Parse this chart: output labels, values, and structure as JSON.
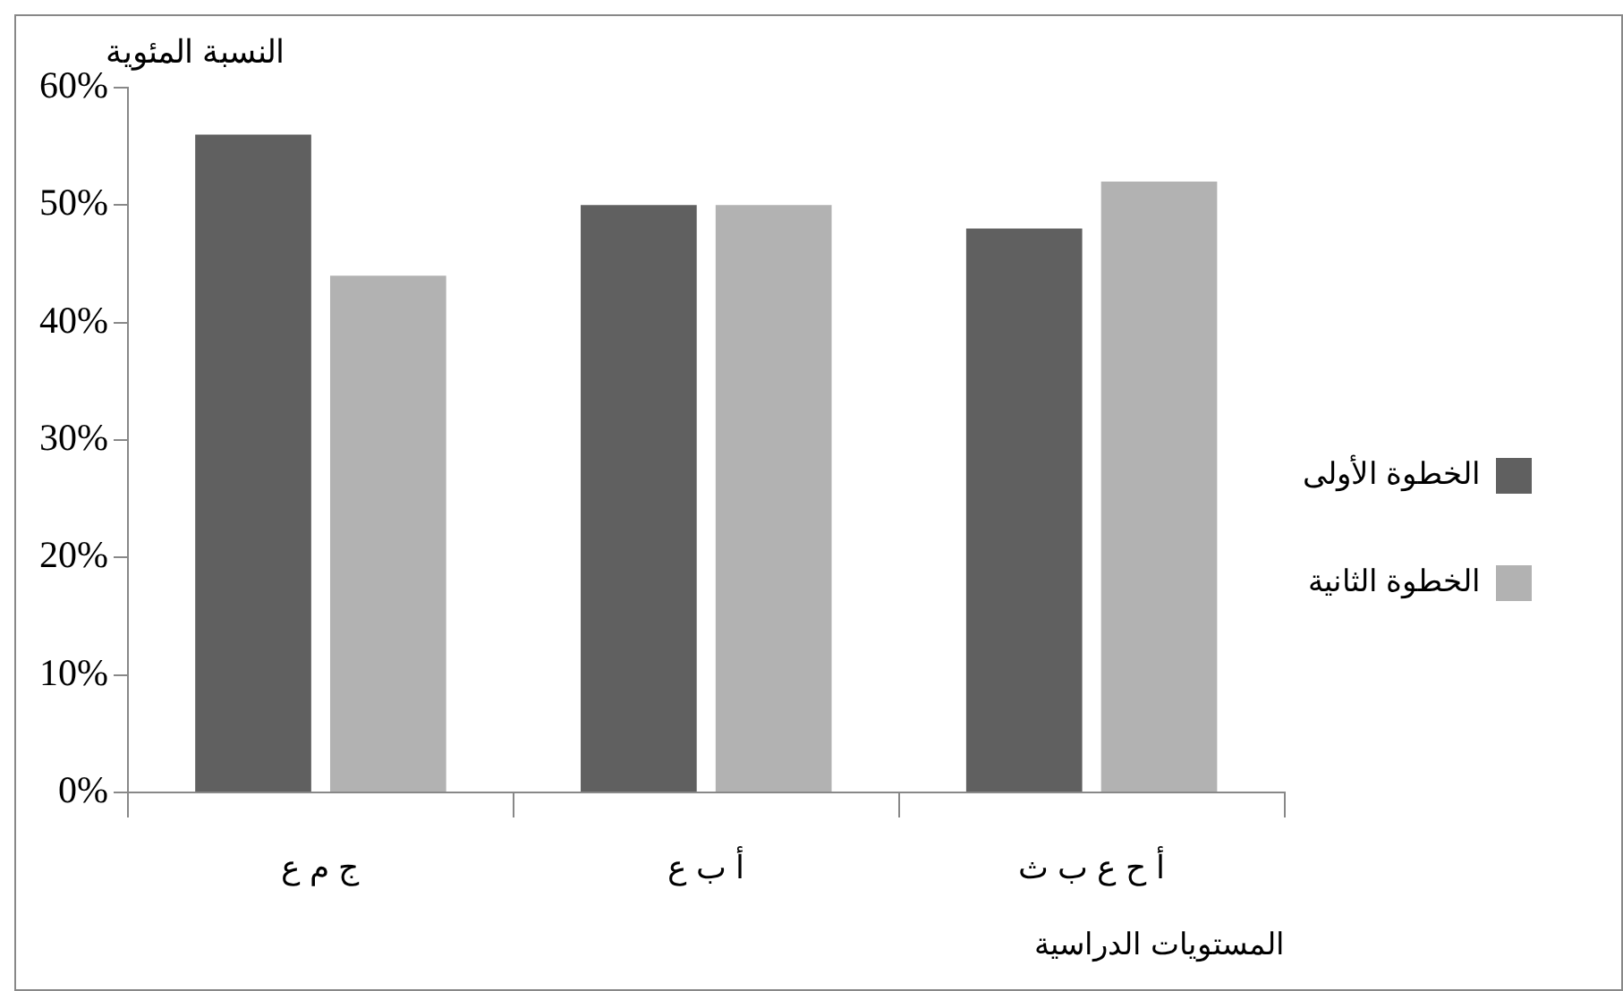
{
  "chart_data": {
    "type": "bar",
    "xlabel": "المستويات الدراسية",
    "ylabel": "النسبة المئوية",
    "categories": [
      "ج م ع",
      "أ ب ع",
      "أ ح ع ب ث"
    ],
    "series": [
      {
        "name": "الخطوة الأولى",
        "color": "#606060",
        "values": [
          56,
          50,
          48
        ]
      },
      {
        "name": "الخطوة الثانية",
        "color": "#b2b2b2",
        "values": [
          44,
          50,
          52
        ]
      }
    ],
    "ylim": [
      0,
      60
    ],
    "yticks": [
      {
        "value": 0,
        "label": "0%"
      },
      {
        "value": 10,
        "label": "10%"
      },
      {
        "value": 20,
        "label": "20%"
      },
      {
        "value": 30,
        "label": "30%"
      },
      {
        "value": 40,
        "label": "40%"
      },
      {
        "value": 50,
        "label": "50%"
      },
      {
        "value": 60,
        "label": "60%"
      }
    ],
    "grid": false,
    "legend": "right"
  }
}
